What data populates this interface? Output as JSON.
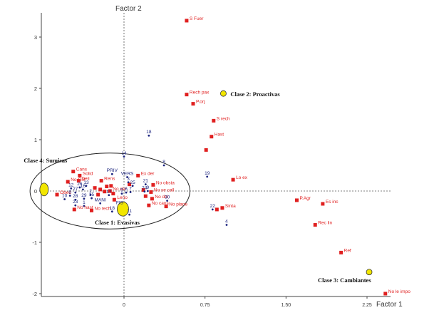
{
  "chart_data": {
    "type": "scatter",
    "title": "",
    "xlabel": "Factor 1",
    "ylabel": "Factor 2",
    "xlim": [
      -0.75,
      2.45
    ],
    "ylim": [
      -2.05,
      3.4
    ],
    "x_ticks": [
      0,
      0.75,
      1.5,
      2.25
    ],
    "x_tick_labels": [
      "0",
      "0.75",
      "1.50",
      "2.25"
    ],
    "y_ticks": [
      -2,
      -1,
      0,
      1,
      2,
      3
    ],
    "y_tick_labels": [
      "-2",
      "-1",
      "0",
      "1",
      "2",
      "3"
    ],
    "grid": false,
    "colors": {
      "modalities": "#e02020",
      "individuals": "#1a237e",
      "classes": "#f2e600",
      "axis": "#444444"
    },
    "series": [
      {
        "name": "",
        "marker": "square",
        "points": [
          {
            "label": "S Fuer",
            "x": 0.58,
            "y": 3.32
          },
          {
            "label": "Rech pax",
            "x": 0.58,
            "y": 1.88
          },
          {
            "label": "P.orj",
            "x": 0.64,
            "y": 1.7
          },
          {
            "label": "S rech",
            "x": 0.83,
            "y": 1.37
          },
          {
            "label": "Hast",
            "x": 0.81,
            "y": 1.06
          },
          {
            "label": "",
            "x": 0.76,
            "y": 0.8
          },
          {
            "label": "Lo ex",
            "x": 1.01,
            "y": 0.22
          },
          {
            "label": "Ex der",
            "x": 0.13,
            "y": 0.3
          },
          {
            "label": "No obsta",
            "x": 0.27,
            "y": 0.12
          },
          {
            "label": "No se call",
            "x": 0.25,
            "y": -0.02
          },
          {
            "label": "No dol",
            "x": 0.26,
            "y": -0.15
          },
          {
            "label": "No cans",
            "x": 0.23,
            "y": -0.28
          },
          {
            "label": "No plane",
            "x": 0.39,
            "y": -0.3
          },
          {
            "label": "Sinta",
            "x": 0.91,
            "y": -0.33
          },
          {
            "label": "",
            "x": 0.86,
            "y": -0.36
          },
          {
            "label": "Cans",
            "x": -0.47,
            "y": 0.38
          },
          {
            "label": "Solid",
            "x": -0.41,
            "y": 0.3
          },
          {
            "label": "Deli",
            "x": -0.42,
            "y": 0.2
          },
          {
            "label": "No Grit",
            "x": -0.52,
            "y": 0.18
          },
          {
            "label": "Rens",
            "x": -0.21,
            "y": 0.2
          },
          {
            "label": "Obed",
            "x": -0.62,
            "y": -0.07
          },
          {
            "label": "No hast",
            "x": -0.46,
            "y": -0.36
          },
          {
            "label": "No rech",
            "x": -0.3,
            "y": -0.38
          },
          {
            "label": "No der",
            "x": -0.13,
            "y": 0.0
          },
          {
            "label": "Leno",
            "x": -0.09,
            "y": -0.17
          },
          {
            "label": "",
            "x": -0.27,
            "y": 0.06
          },
          {
            "label": "",
            "x": -0.22,
            "y": 0.03
          },
          {
            "label": "",
            "x": -0.18,
            "y": -0.01
          },
          {
            "label": "",
            "x": -0.16,
            "y": 0.09
          },
          {
            "label": "",
            "x": -0.12,
            "y": 0.1
          },
          {
            "label": "",
            "x": -0.24,
            "y": -0.07
          },
          {
            "label": "",
            "x": -0.1,
            "y": -0.05
          },
          {
            "label": "",
            "x": 0.05,
            "y": 0.13
          },
          {
            "label": "",
            "x": 0.18,
            "y": 0.02
          },
          {
            "label": "",
            "x": 0.2,
            "y": -0.1
          },
          {
            "label": "P.Agr",
            "x": 1.6,
            "y": -0.18
          },
          {
            "label": "Es inc",
            "x": 1.84,
            "y": -0.25
          },
          {
            "label": "Rec lin",
            "x": 1.77,
            "y": -0.66
          },
          {
            "label": "Ref",
            "x": 2.01,
            "y": -1.2
          },
          {
            "label": "No le impo",
            "x": 2.42,
            "y": -2.0
          }
        ]
      },
      {
        "name": "",
        "marker": "dot",
        "points": [
          {
            "label": "18",
            "x": 0.23,
            "y": 1.08
          },
          {
            "label": "14",
            "x": 0.0,
            "y": 0.67
          },
          {
            "label": "8",
            "x": 0.37,
            "y": 0.5
          },
          {
            "label": "19",
            "x": 0.77,
            "y": 0.28
          },
          {
            "label": "PRIV",
            "x": -0.11,
            "y": 0.33
          },
          {
            "label": "VERS",
            "x": 0.03,
            "y": 0.27
          },
          {
            "label": "3",
            "x": 0.04,
            "y": 0.17
          },
          {
            "label": "21",
            "x": 0.2,
            "y": 0.13
          },
          {
            "label": "25",
            "x": 0.08,
            "y": 0.1
          },
          {
            "label": "24",
            "x": 0.19,
            "y": -0.01
          },
          {
            "label": "9",
            "x": 0.22,
            "y": 0.0
          },
          {
            "label": "7",
            "x": 0.06,
            "y": -0.02
          },
          {
            "label": "6",
            "x": 0.02,
            "y": -0.03
          },
          {
            "label": "5",
            "x": -0.02,
            "y": -0.05
          },
          {
            "label": "30",
            "x": 0.4,
            "y": -0.19
          },
          {
            "label": "22",
            "x": 0.82,
            "y": -0.36
          },
          {
            "label": "4",
            "x": 0.95,
            "y": -0.66
          },
          {
            "label": "12",
            "x": -0.49,
            "y": 0.05
          },
          {
            "label": "26",
            "x": -0.41,
            "y": 0.07
          },
          {
            "label": "13",
            "x": -0.35,
            "y": 0.1
          },
          {
            "label": "16",
            "x": -0.38,
            "y": 0.03
          },
          {
            "label": "27",
            "x": -0.45,
            "y": -0.03
          },
          {
            "label": "8",
            "x": -0.5,
            "y": -0.09
          },
          {
            "label": "2",
            "x": -0.31,
            "y": -0.07
          },
          {
            "label": "10",
            "x": -0.55,
            "y": -0.16
          },
          {
            "label": "28",
            "x": -0.45,
            "y": -0.17
          },
          {
            "label": "29",
            "x": -0.37,
            "y": -0.15
          },
          {
            "label": "23",
            "x": -0.45,
            "y": -0.28
          },
          {
            "label": "1",
            "x": -0.37,
            "y": -0.29
          },
          {
            "label": "15",
            "x": -0.3,
            "y": -0.14
          },
          {
            "label": "MANI",
            "x": -0.22,
            "y": -0.24
          },
          {
            "label": "17",
            "x": -0.14,
            "y": -0.08
          },
          {
            "label": "18",
            "x": -0.11,
            "y": -0.4
          },
          {
            "label": "11",
            "x": 0.05,
            "y": -0.46
          },
          {
            "label": "FIS",
            "x": -0.04,
            "y": -0.3
          }
        ]
      },
      {
        "name": "",
        "marker": "yellow-ellipse",
        "points": [
          {
            "label": "Clase 1: Evasivas",
            "x": -0.01,
            "y": -0.35,
            "size": "large"
          },
          {
            "label": "Clase 2: Proactivas",
            "x": 0.92,
            "y": 1.9,
            "size": "small"
          },
          {
            "label": "Clase 3: Cambiantes",
            "x": 2.27,
            "y": -1.58,
            "size": "small"
          },
          {
            "label": "Clase 4: Sumisas",
            "x": -0.74,
            "y": 0.03,
            "size": "medium"
          }
        ]
      }
    ],
    "annotations": {
      "ellipse_center": [
        -0.13,
        0.0
      ],
      "ellipse_radii": [
        0.74,
        0.74
      ]
    }
  }
}
